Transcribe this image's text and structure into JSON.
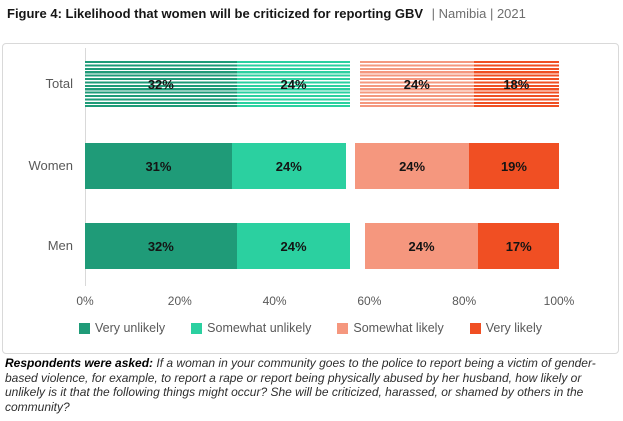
{
  "title": {
    "main": "Figure 4: Likelihood that women will be criticized for reporting GBV",
    "meta": "| Namibia | 2021"
  },
  "chart_data": {
    "type": "bar",
    "orientation": "horizontal",
    "stacked": true,
    "title": "Likelihood that women will be criticized for reporting GBV",
    "categories": [
      "Total",
      "Women",
      "Men"
    ],
    "series": [
      {
        "name": "Very unlikely",
        "color": "#1F9B78",
        "values": [
          32,
          31,
          32
        ]
      },
      {
        "name": "Somewhat unlikely",
        "color": "#2BD0A0",
        "values": [
          24,
          24,
          24
        ]
      },
      {
        "name": "Somewhat likely",
        "color": "#F5977E",
        "values": [
          24,
          24,
          24
        ]
      },
      {
        "name": "Very likely",
        "color": "#F04F23",
        "values": [
          18,
          19,
          17
        ]
      }
    ],
    "x_ticks": [
      "0%",
      "20%",
      "40%",
      "60%",
      "80%",
      "100%"
    ],
    "xlim": [
      0,
      100
    ],
    "value_label_suffix": "%",
    "layout": {
      "left_anchored_series": [
        "Very unlikely",
        "Somewhat unlikely"
      ],
      "right_anchored_series": [
        "Somewhat likely",
        "Very likely"
      ],
      "hatched_categories": [
        "Total"
      ],
      "legend_position": "bottom",
      "grid": false
    }
  },
  "colors": {
    "text_gray": "#595959",
    "panel_border": "#d9d9d9",
    "title_meta_gray": "#6e6e6e"
  },
  "footer": {
    "lead": "Respondents were asked:",
    "body": "If a woman in your community goes to the police to report being a victim of gender-based violence, for example, to report a rape or report being physically abused by her husband, how likely or unlikely is it that the following things might occur? She will be criticized, harassed, or shamed by others in the community?"
  }
}
